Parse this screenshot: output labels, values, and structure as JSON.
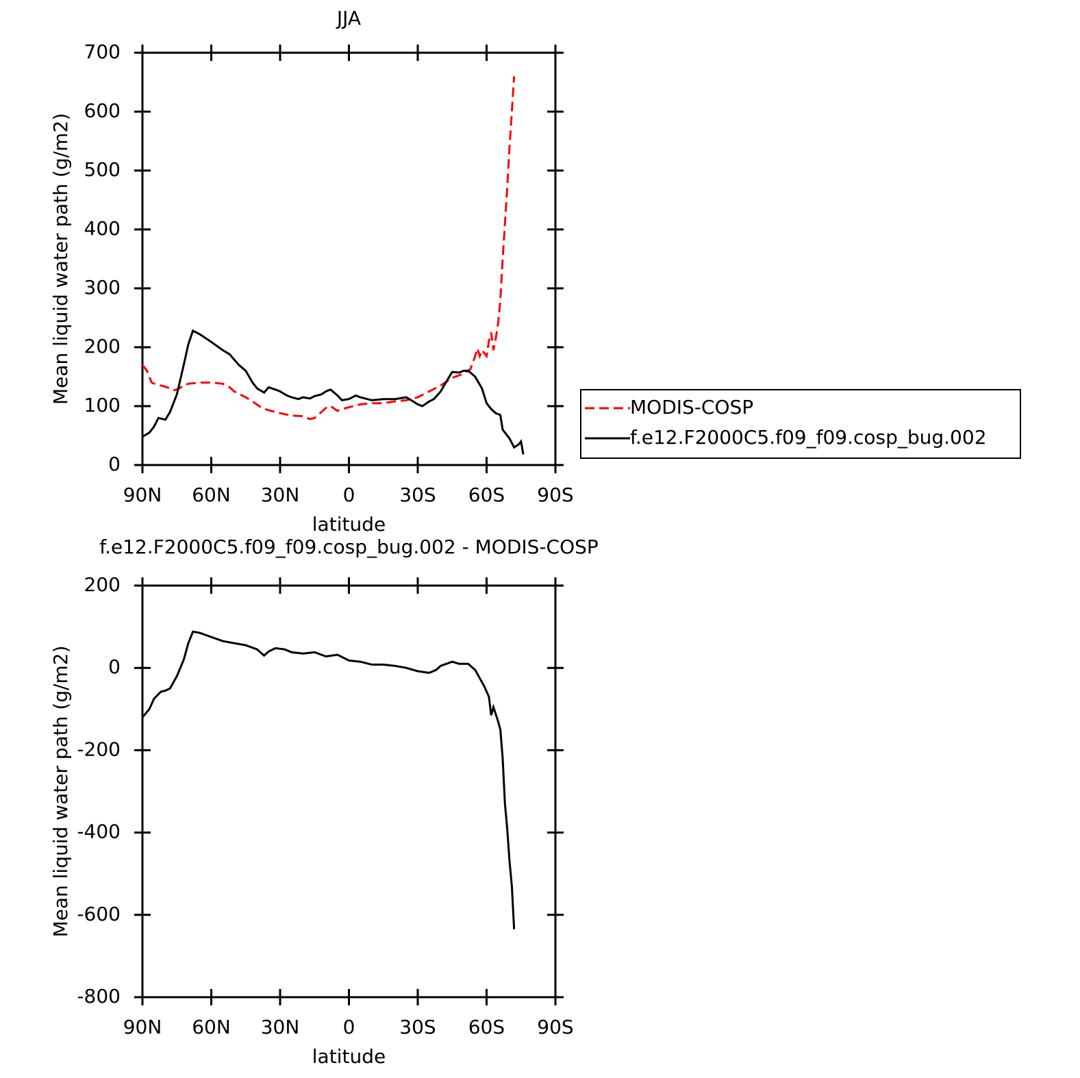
{
  "chart_data": [
    {
      "type": "line",
      "title": "JJA",
      "xlabel": "latitude",
      "ylabel": "Mean liquid water path (g/m2)",
      "xlim": [
        90,
        -90
      ],
      "xticks": [
        {
          "value": 90,
          "label": "90N"
        },
        {
          "value": 60,
          "label": "60N"
        },
        {
          "value": 30,
          "label": "30N"
        },
        0,
        {
          "value": -30,
          "label": "30S"
        },
        {
          "value": -60,
          "label": "60S"
        },
        {
          "value": -90,
          "label": "90S"
        }
      ],
      "ylim": [
        0,
        700
      ],
      "yticks": [
        0,
        100,
        200,
        300,
        400,
        500,
        600,
        700
      ],
      "legend": "right",
      "series": [
        {
          "name": "MODIS-COSP",
          "color": "#ff0000",
          "line_style": "dashed",
          "x": [
            90,
            88,
            86,
            84,
            82,
            80,
            78,
            76,
            74,
            72,
            70,
            65,
            60,
            55,
            52,
            50,
            45,
            42,
            38,
            35,
            30,
            25,
            20,
            17,
            15,
            12,
            10,
            8,
            5,
            3,
            0,
            -5,
            -10,
            -15,
            -20,
            -25,
            -30,
            -35,
            -40,
            -45,
            -50,
            -53,
            -55,
            -56,
            -57,
            -58,
            -60,
            -61,
            -62,
            -63,
            -64,
            -65,
            -66,
            -67,
            -68,
            -69,
            -70,
            -71,
            -72
          ],
          "values": [
            170,
            160,
            140,
            137,
            135,
            133,
            130,
            127,
            130,
            135,
            138,
            140,
            140,
            138,
            132,
            125,
            115,
            108,
            97,
            93,
            88,
            84,
            83,
            78,
            80,
            90,
            97,
            100,
            92,
            95,
            98,
            103,
            105,
            105,
            108,
            110,
            115,
            125,
            135,
            148,
            155,
            163,
            185,
            198,
            185,
            195,
            185,
            210,
            225,
            195,
            215,
            240,
            280,
            350,
            410,
            470,
            540,
            600,
            660
          ]
        },
        {
          "name": "f.e12.F2000C5.f09_f09.cosp_bug.002",
          "color": "#000000",
          "line_style": "solid",
          "x": [
            90,
            87,
            85,
            83,
            80,
            78,
            75,
            72,
            70,
            68,
            65,
            60,
            55,
            52,
            48,
            45,
            42,
            40,
            37,
            35,
            32,
            30,
            27,
            25,
            22,
            20,
            17,
            15,
            12,
            10,
            8,
            5,
            3,
            0,
            -3,
            -5,
            -8,
            -10,
            -15,
            -20,
            -25,
            -28,
            -30,
            -32,
            -35,
            -37,
            -40,
            -43,
            -45,
            -48,
            -50,
            -52,
            -55,
            -58,
            -60,
            -62,
            -64,
            -66,
            -67,
            -70,
            -72,
            -74,
            -75,
            -76
          ],
          "values": [
            48,
            55,
            65,
            80,
            77,
            90,
            120,
            170,
            205,
            228,
            222,
            209,
            195,
            188,
            170,
            160,
            140,
            130,
            123,
            132,
            128,
            125,
            118,
            115,
            112,
            115,
            113,
            117,
            120,
            125,
            128,
            118,
            110,
            112,
            118,
            115,
            112,
            110,
            112,
            112,
            115,
            108,
            103,
            100,
            108,
            112,
            125,
            145,
            158,
            157,
            160,
            160,
            150,
            130,
            105,
            95,
            88,
            85,
            60,
            45,
            30,
            35,
            40,
            18
          ]
        }
      ]
    },
    {
      "type": "line",
      "title": "f.e12.F2000C5.f09_f09.cosp_bug.002 - MODIS-COSP",
      "xlabel": "latitude",
      "ylabel": "Mean liquid water path (g/m2)",
      "xlim": [
        90,
        -90
      ],
      "xticks": [
        {
          "value": 90,
          "label": "90N"
        },
        {
          "value": 60,
          "label": "60N"
        },
        {
          "value": 30,
          "label": "30N"
        },
        0,
        {
          "value": -30,
          "label": "30S"
        },
        {
          "value": -60,
          "label": "60S"
        },
        {
          "value": -90,
          "label": "90S"
        }
      ],
      "ylim": [
        -800,
        200
      ],
      "yticks": [
        -800,
        -600,
        -400,
        -200,
        0,
        200
      ],
      "series": [
        {
          "color": "#000000",
          "line_style": "solid",
          "x": [
            90,
            87,
            85,
            82,
            80,
            78,
            75,
            72,
            70,
            68,
            65,
            60,
            55,
            50,
            45,
            40,
            37,
            35,
            32,
            28,
            25,
            20,
            15,
            10,
            5,
            0,
            -5,
            -10,
            -15,
            -20,
            -25,
            -30,
            -35,
            -38,
            -40,
            -45,
            -48,
            -52,
            -55,
            -58,
            -59,
            -61,
            -62,
            -63,
            -65,
            -66,
            -67,
            -68,
            -69,
            -70,
            -71,
            -72
          ],
          "values": [
            -120,
            -100,
            -75,
            -58,
            -55,
            -50,
            -20,
            20,
            60,
            88,
            85,
            75,
            65,
            60,
            55,
            45,
            30,
            40,
            48,
            45,
            38,
            35,
            38,
            28,
            32,
            18,
            15,
            8,
            8,
            5,
            0,
            -8,
            -12,
            -5,
            5,
            15,
            10,
            10,
            -5,
            -35,
            -45,
            -70,
            -115,
            -95,
            -130,
            -150,
            -220,
            -330,
            -390,
            -470,
            -530,
            -635
          ]
        }
      ]
    }
  ]
}
